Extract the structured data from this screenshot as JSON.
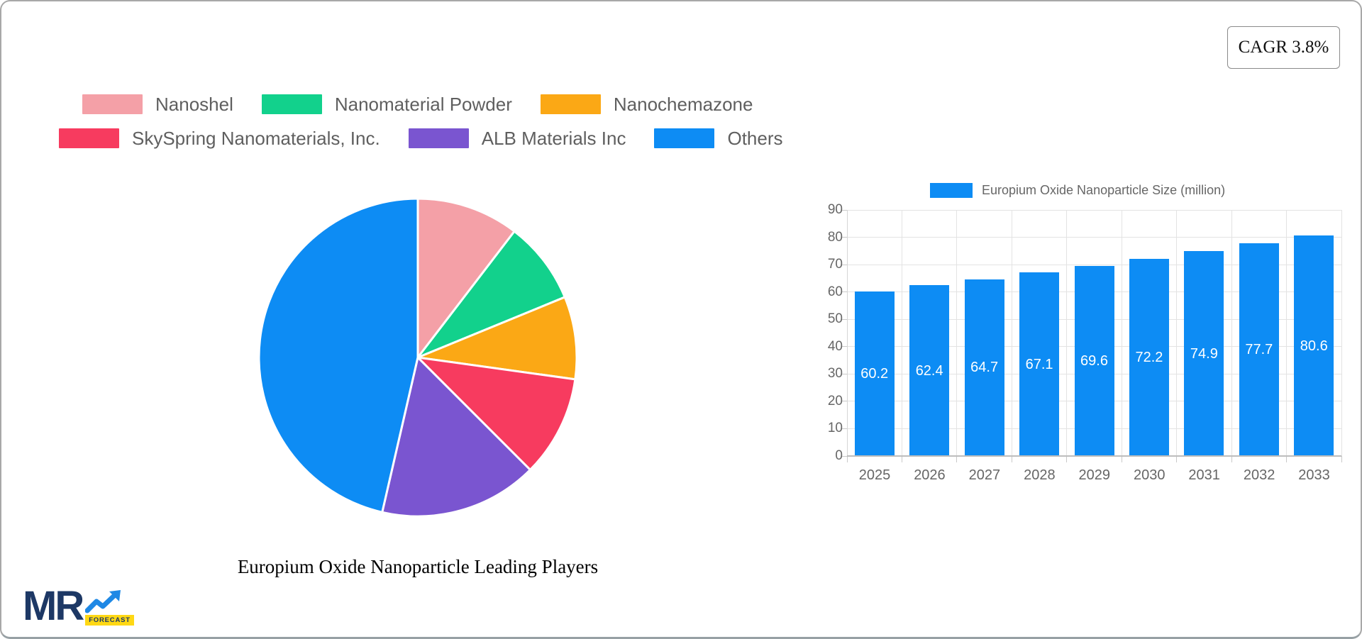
{
  "cagr_badge": "CAGR 3.8%",
  "logo": {
    "brand": "MR",
    "sub": "FORECAST"
  },
  "chart_data": [
    {
      "type": "pie",
      "title": "Europium Oxide Nanoparticle Leading Players",
      "legend_position": "top-left, two rows",
      "start_angle_deg_from_12oclock": 0,
      "direction": "clockwise",
      "slices": [
        {
          "label": "Nanoshel",
          "value": 10.4,
          "color": "#f4a0a7"
        },
        {
          "label": "Nanomaterial Powder",
          "value": 8.4,
          "color": "#12d18c"
        },
        {
          "label": "Nanochemazone",
          "value": 8.4,
          "color": "#fba815"
        },
        {
          "label": "SkySpring Nanomaterials, Inc.",
          "value": 10.3,
          "color": "#f73b5f"
        },
        {
          "label": "ALB Materials Inc",
          "value": 16.1,
          "color": "#7a55d0"
        },
        {
          "label": "Others",
          "value": 46.4,
          "color": "#0d8cf4"
        }
      ],
      "legend_rows": [
        [
          0,
          1,
          2
        ],
        [
          3,
          4,
          5
        ]
      ],
      "separator_color": "#ffffff"
    },
    {
      "type": "bar",
      "legend_label": "Europium Oxide Nanoparticle Size (million)",
      "categories": [
        "2025",
        "2026",
        "2027",
        "2028",
        "2029",
        "2030",
        "2031",
        "2032",
        "2033"
      ],
      "values": [
        60.2,
        62.4,
        64.7,
        67.1,
        69.6,
        72.2,
        74.9,
        77.7,
        80.6
      ],
      "bar_color": "#0d8cf4",
      "value_label_color": "#ffffff",
      "ylim": [
        0,
        90
      ],
      "ytick_step": 10,
      "grid": true,
      "legend_position": "top-center"
    }
  ]
}
